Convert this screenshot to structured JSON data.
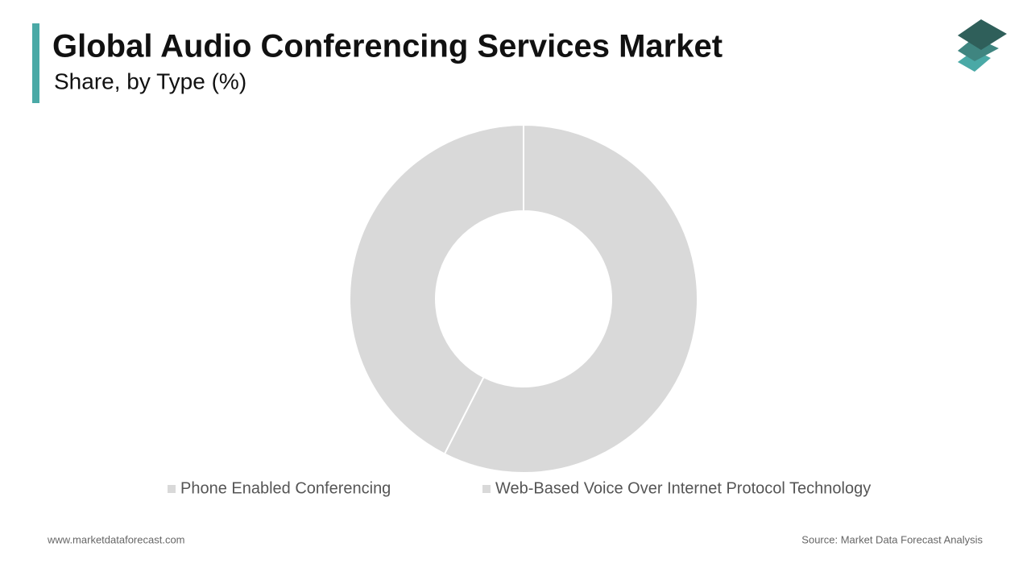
{
  "chart_data": {
    "type": "donut",
    "title": "Global Audio Conferencing Services Market",
    "subtitle": "Share, by Type (%)",
    "categories": [
      "Phone Enabled Conferencing",
      "Web-Based Voice Over Internet Protocol Technology"
    ],
    "values": [
      57.5,
      42.5
    ],
    "colors": [
      "#d9d9d9",
      "#d9d9d9"
    ],
    "legend": "bottom",
    "website": "www.marketdataforecast.com",
    "source": "Source: Market Data Forecast Analysis"
  }
}
